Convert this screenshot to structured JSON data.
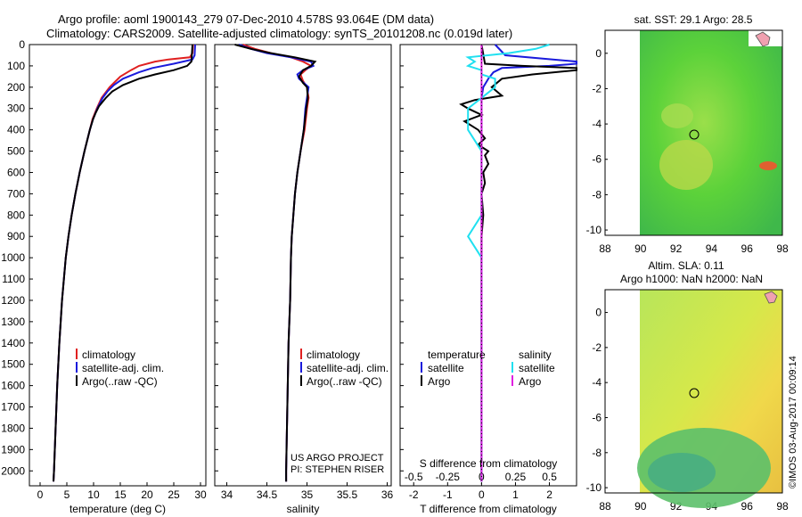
{
  "header": {
    "line1": "Argo profile: aoml 1900143_279 07-Dec-2010 4.578S 93.064E (DM data)",
    "line2": "Climatology: CARS2009. Satellite-adjusted climatology: synTS_20101208.nc (0.019d later)"
  },
  "colors": {
    "climatology": "#e02020",
    "satellite": "#1a1adc",
    "argo": "#000000",
    "sal_satellite": "#20e0f0",
    "sal_argo": "#e020e0"
  },
  "depth_ticks": [
    "0",
    "100",
    "200",
    "300",
    "400",
    "500",
    "600",
    "700",
    "800",
    "900",
    "1000",
    "1100",
    "1200",
    "1300",
    "1400",
    "1500",
    "1600",
    "1700",
    "1800",
    "1900",
    "2000"
  ],
  "legend_profiles": [
    "climatology",
    "satellite-adj. clim.",
    "Argo(..raw -QC)"
  ],
  "legend_diff": {
    "temperature": "temperature",
    "salinity": "salinity",
    "satellite": "satellite",
    "argo": "Argo"
  },
  "project": {
    "line1": "US ARGO PROJECT",
    "line2": "PI: STEPHEN RISER"
  },
  "maps": {
    "top_title": "sat. SST: 29.1 Argo: 28.5",
    "bottom_title1": "Altim. SLA: 0.11",
    "bottom_title2": "Argo h1000: NaN h2000: NaN",
    "x_ticks": [
      "88",
      "90",
      "92",
      "94",
      "96",
      "98"
    ],
    "y_ticks": [
      "0",
      "-2",
      "-4",
      "-6",
      "-8",
      "-10"
    ]
  },
  "footer": "©IMOS 03-Aug-2017 00:09:14",
  "chart_data": [
    {
      "type": "line",
      "name": "temperature",
      "xlabel": "temperature (deg C)",
      "ylabel": "",
      "xlim": [
        -2,
        31
      ],
      "ylim": [
        2070,
        0
      ],
      "x_ticks": [
        "0",
        "5",
        "10",
        "15",
        "20",
        "25",
        "30"
      ],
      "series": [
        {
          "name": "climatology",
          "depth": [
            0,
            40,
            60,
            70,
            80,
            100,
            120,
            150,
            180,
            200,
            250,
            300,
            350,
            400,
            500,
            600,
            700,
            800,
            900,
            1000,
            1200,
            1400,
            1600,
            1800,
            2000,
            2050
          ],
          "values": [
            28.6,
            28.5,
            28.0,
            24,
            21.5,
            18.5,
            17,
            15,
            13.8,
            13,
            11.5,
            10.6,
            9.8,
            9.3,
            8.3,
            7.4,
            6.6,
            5.9,
            5.3,
            4.8,
            4.1,
            3.6,
            3.2,
            2.9,
            2.6,
            2.5
          ]
        },
        {
          "name": "satellite-adj. clim.",
          "depth": [
            0,
            50,
            70,
            90,
            110,
            130,
            160,
            190,
            220,
            250,
            300,
            350,
            400,
            500,
            600,
            700,
            800,
            900,
            1000,
            1200,
            1400,
            1600,
            1800,
            2000,
            2050
          ],
          "values": [
            29.0,
            28.9,
            28.5,
            25,
            21,
            18.5,
            15.5,
            13.8,
            12.6,
            11.7,
            10.7,
            9.9,
            9.3,
            8.3,
            7.4,
            6.6,
            5.9,
            5.3,
            4.8,
            4.1,
            3.6,
            3.2,
            2.9,
            2.6,
            2.5
          ]
        },
        {
          "name": "Argo(..raw -QC)",
          "depth": [
            0,
            80,
            100,
            120,
            140,
            160,
            190,
            220,
            250,
            290,
            320,
            350,
            400,
            500,
            600,
            700,
            800,
            900,
            1000,
            1200,
            1400,
            1600,
            1800,
            2000,
            2050
          ],
          "values": [
            28.5,
            28.3,
            27.5,
            25,
            21.5,
            18.5,
            15.5,
            13.5,
            12.3,
            11.0,
            10.4,
            9.9,
            9.3,
            8.3,
            7.4,
            6.6,
            5.9,
            5.3,
            4.8,
            4.1,
            3.6,
            3.2,
            2.9,
            2.6,
            2.5
          ]
        }
      ]
    },
    {
      "type": "line",
      "name": "salinity",
      "xlabel": "salinity",
      "xlim": [
        33.85,
        36.05
      ],
      "ylim": [
        2070,
        0
      ],
      "x_ticks": [
        "34",
        "34.5",
        "35",
        "35.5",
        "36"
      ],
      "series": [
        {
          "name": "climatology",
          "depth": [
            0,
            20,
            40,
            60,
            80,
            100,
            120,
            140,
            170,
            200,
            250,
            300,
            400,
            500,
            600,
            700,
            800,
            900,
            1000,
            1200,
            1400,
            1600,
            1800,
            2000,
            2050
          ],
          "values": [
            34.2,
            34.35,
            34.55,
            34.8,
            34.95,
            35.05,
            34.98,
            34.92,
            34.95,
            35.0,
            35.02,
            35.0,
            34.97,
            34.92,
            34.88,
            34.85,
            34.83,
            34.81,
            34.8,
            34.79,
            34.77,
            34.76,
            34.75,
            34.74,
            34.74
          ]
        },
        {
          "name": "satellite-adj. clim.",
          "depth": [
            0,
            20,
            40,
            60,
            80,
            100,
            120,
            140,
            160,
            180,
            200,
            250,
            300,
            400,
            500,
            600,
            700,
            800,
            900,
            1000,
            1200,
            1400,
            1600,
            1800,
            2000,
            2050
          ],
          "values": [
            34.15,
            34.3,
            34.5,
            34.8,
            35.05,
            35.08,
            34.95,
            34.88,
            34.9,
            34.96,
            35.02,
            35.0,
            34.98,
            34.96,
            34.92,
            34.88,
            34.85,
            34.83,
            34.81,
            34.8,
            34.79,
            34.77,
            34.76,
            34.75,
            34.74,
            34.74
          ]
        },
        {
          "name": "Argo(..raw -QC)",
          "depth": [
            0,
            20,
            40,
            60,
            80,
            100,
            120,
            150,
            180,
            200,
            250,
            300,
            400,
            500,
            600,
            700,
            800,
            900,
            1000,
            1200,
            1400,
            1600,
            1800,
            2000,
            2050
          ],
          "values": [
            34.1,
            34.3,
            34.55,
            34.85,
            35.1,
            35.05,
            34.95,
            34.9,
            34.95,
            35.0,
            35.01,
            34.99,
            34.96,
            34.92,
            34.88,
            34.85,
            34.83,
            34.81,
            34.8,
            34.79,
            34.77,
            34.76,
            34.75,
            34.74,
            34.74
          ]
        }
      ]
    },
    {
      "type": "line",
      "name": "difference",
      "xlabel": "T difference from climatology",
      "xlabel_top": "S difference from climatology",
      "xlim": [
        -2.4,
        2.8
      ],
      "ylim": [
        2070,
        0
      ],
      "x_ticks": [
        "-2",
        "-1",
        "0",
        "1",
        "2"
      ],
      "s_ticks": [
        "-0.5",
        "-0.25",
        "0",
        "0.25",
        "0.5"
      ],
      "series": [
        {
          "name": "T satellite",
          "depth": [
            0,
            50,
            80,
            90,
            100,
            110,
            130,
            160,
            200,
            250,
            300,
            400,
            500,
            1000,
            1500,
            2000,
            2050
          ],
          "values": [
            0.4,
            0.7,
            2.8,
            2.8,
            2.0,
            0.6,
            0.35,
            0.2,
            0.05,
            0.0,
            0.0,
            0.0,
            0.0,
            0.0,
            0.0,
            0.0,
            0.0
          ]
        },
        {
          "name": "T Argo",
          "depth": [
            0,
            90,
            100,
            110,
            120,
            140,
            160,
            200,
            240,
            260,
            280,
            300,
            330,
            360,
            400,
            440,
            470,
            500,
            520,
            560,
            600,
            650,
            700,
            800,
            900,
            1000,
            1200,
            1500,
            1800,
            2000,
            2050
          ],
          "values": [
            0.0,
            0.1,
            1.2,
            2.8,
            2.8,
            1.5,
            0.6,
            0.3,
            0.6,
            -0.2,
            -0.6,
            -0.4,
            0.0,
            -0.5,
            -0.1,
            0.1,
            -0.1,
            0.2,
            0.1,
            0.2,
            0.05,
            0.1,
            0.0,
            0.05,
            0.0,
            0.0,
            0.0,
            0.0,
            0.0,
            0.0,
            0.0
          ]
        },
        {
          "name": "S satellite",
          "depth": [
            0,
            20,
            40,
            60,
            80,
            100,
            120,
            140,
            160,
            180,
            200,
            250,
            300,
            400,
            500,
            600,
            700,
            800,
            900,
            1000,
            1500,
            2000,
            2050
          ],
          "values": [
            0.5,
            0.4,
            0.2,
            -0.1,
            -0.05,
            -0.1,
            0.0,
            0.0,
            0.1,
            0.1,
            0.1,
            0.0,
            -0.1,
            -0.1,
            0.0,
            0.0,
            0.0,
            0.0,
            -0.1,
            0.0,
            0.0,
            0.0,
            0.0
          ]
        },
        {
          "name": "S Argo",
          "depth": [
            0,
            2050
          ],
          "values": [
            0.0,
            0.0
          ]
        }
      ]
    }
  ]
}
